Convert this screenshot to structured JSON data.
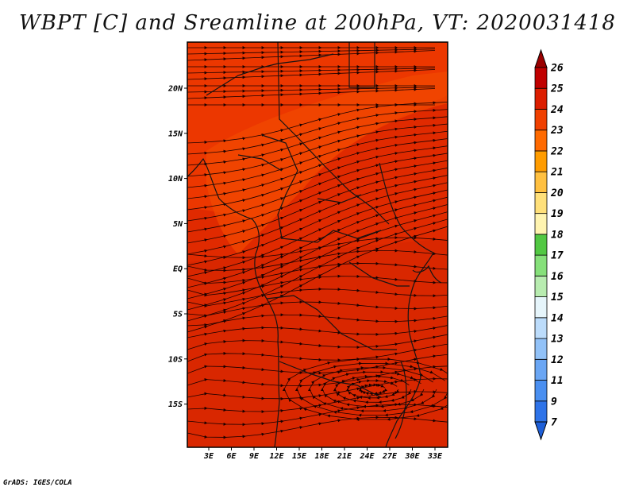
{
  "title": "WBPT [C] and Sreamline at 200hPa, VT: 2020031418",
  "footer": "GrADS: IGES/COLA",
  "map": {
    "field": "WBPT [C]",
    "level": "200hPa",
    "valid_time": "2020031418",
    "lon_ticks": [
      "3E",
      "6E",
      "9E",
      "12E",
      "15E",
      "18E",
      "21E",
      "24E",
      "27E",
      "30E",
      "33E"
    ],
    "lat_ticks": [
      "20N",
      "15N",
      "10N",
      "5N",
      "EQ",
      "5S",
      "10S",
      "15S"
    ],
    "base_color": "#e02a00"
  },
  "colorbar": {
    "levels": [
      "7",
      "9",
      "11",
      "12",
      "13",
      "14",
      "15",
      "16",
      "17",
      "18",
      "19",
      "20",
      "21",
      "22",
      "23",
      "24",
      "25",
      "26"
    ],
    "colors": [
      "#1e5fd8",
      "#2e73e8",
      "#4a8ff0",
      "#6aa6f4",
      "#92c2f8",
      "#bcdcfb",
      "#e6f5fb",
      "#b8ecb0",
      "#86e07a",
      "#52c843",
      "#fff4b0",
      "#ffe07a",
      "#ffc040",
      "#ff9c00",
      "#ff6a00",
      "#f04000",
      "#dc1e00",
      "#c00000",
      "#9a0000"
    ]
  }
}
